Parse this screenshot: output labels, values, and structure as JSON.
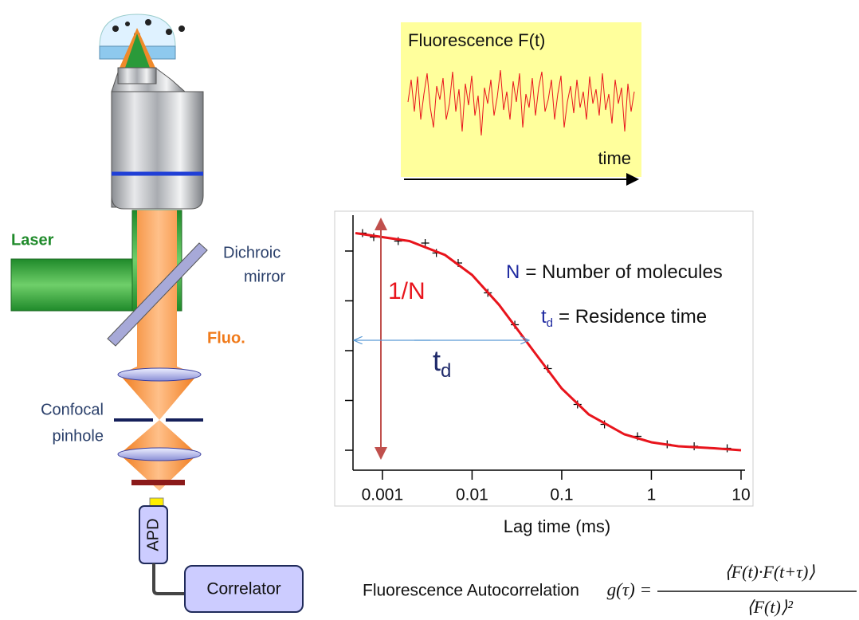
{
  "microscope": {
    "laser": "Laser",
    "dichroic": [
      "Dichroic",
      "mirror"
    ],
    "fluo": "Fluo.",
    "pinhole": [
      "Confocal",
      "pinhole"
    ],
    "apd": "APD",
    "correlator": "Correlator"
  },
  "trace_panel": {
    "title": "Fluorescence F(t)",
    "axis_label": "time"
  },
  "chart_data": {
    "type": "scatter",
    "x_label": "Lag time (ms)",
    "xlog": true,
    "xlim": [
      0.00047,
      13.6
    ],
    "xticks": [
      0.001,
      0.01,
      0.1,
      1,
      10
    ],
    "ylim": [
      -0.1,
      1.2
    ],
    "yticks": [
      0,
      0.25,
      0.5,
      0.75,
      1
    ],
    "series": [
      {
        "type": "scatter",
        "color": "#000000",
        "x": [
          0.0006,
          0.0008,
          0.0015,
          0.003,
          0.004,
          0.007,
          0.015,
          0.03,
          0.07,
          0.15,
          0.3,
          0.7,
          1.5,
          3,
          7
        ],
        "values": [
          1.09,
          1.07,
          1.05,
          1.04,
          0.99,
          0.94,
          0.79,
          0.63,
          0.41,
          0.23,
          0.13,
          0.07,
          0.03,
          0.02,
          0.01
        ]
      },
      {
        "type": "line",
        "color": "#e8141c",
        "x": [
          0.0005,
          0.001,
          0.002,
          0.005,
          0.01,
          0.02,
          0.05,
          0.1,
          0.2,
          0.5,
          1,
          2,
          5,
          10
        ],
        "values": [
          1.09,
          1.07,
          1.05,
          0.98,
          0.88,
          0.73,
          0.49,
          0.31,
          0.18,
          0.08,
          0.04,
          0.02,
          0.01,
          0.0
        ]
      }
    ],
    "annotations": {
      "amplitude": "1/N",
      "td": {
        "main": "t",
        "sub": "d"
      },
      "legend_n": {
        "symbol": "N",
        "text": "= Number of molecules"
      },
      "legend_td": {
        "main": "t",
        "sub": "d",
        "text": "= Residence time"
      }
    }
  },
  "formula": {
    "caption": "Fluorescence Autocorrelation",
    "lhs": "g(τ) =",
    "numerator": "⟨F(t)·F(t+τ)⟩",
    "denominator": "⟨F(t)⟩²"
  }
}
